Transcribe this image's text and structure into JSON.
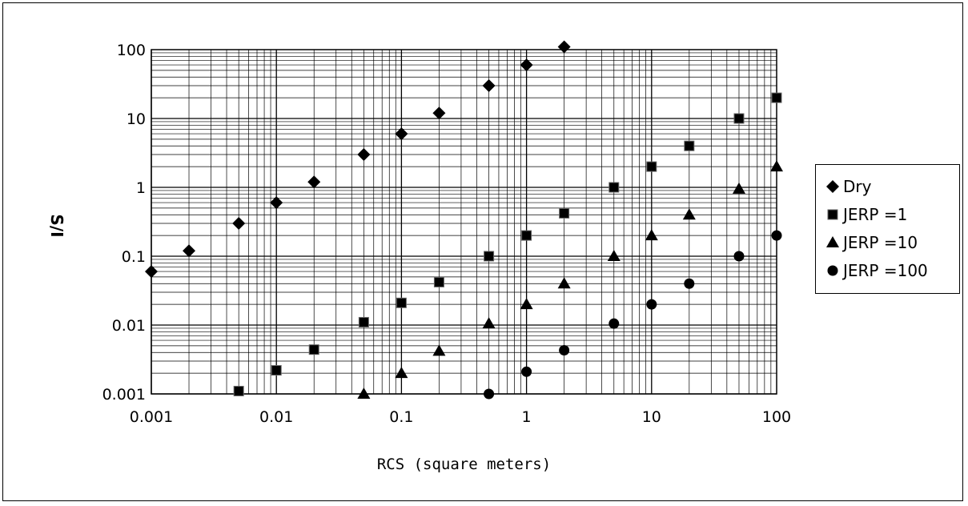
{
  "chart_data": {
    "type": "scatter",
    "title": "",
    "xlabel": "RCS (square meters)",
    "ylabel": "S/I",
    "xscale": "log",
    "yscale": "log",
    "xlim": [
      0.001,
      100
    ],
    "ylim": [
      0.001,
      100
    ],
    "x_ticks": [
      "0.001",
      "0.01",
      "0.1",
      "1",
      "10",
      "100"
    ],
    "y_ticks": [
      "0.001",
      "0.01",
      "0.1",
      "1",
      "10",
      "100"
    ],
    "grid": true,
    "legend_position": "right",
    "series": [
      {
        "name": "Dry",
        "marker": "diamond",
        "color": "#000000",
        "x": [
          0.001,
          0.002,
          0.005,
          0.01,
          0.02,
          0.05,
          0.1,
          0.2,
          0.5,
          1,
          2
        ],
        "y": [
          0.06,
          0.12,
          0.3,
          0.6,
          1.2,
          3,
          6,
          12,
          30,
          60,
          110
        ]
      },
      {
        "name": "JERP =1",
        "marker": "square",
        "color": "#000000",
        "x": [
          0.005,
          0.01,
          0.02,
          0.05,
          0.1,
          0.2,
          0.5,
          1,
          2,
          5,
          10,
          20,
          50,
          100
        ],
        "y": [
          0.0011,
          0.0022,
          0.0044,
          0.011,
          0.021,
          0.042,
          0.1,
          0.2,
          0.42,
          1,
          2,
          4,
          10,
          20
        ]
      },
      {
        "name": "JERP =10",
        "marker": "triangle",
        "color": "#000000",
        "x": [
          0.05,
          0.1,
          0.2,
          0.5,
          1,
          2,
          5,
          10,
          20,
          50,
          100
        ],
        "y": [
          0.001,
          0.002,
          0.0042,
          0.0105,
          0.02,
          0.04,
          0.1,
          0.2,
          0.4,
          0.95,
          2
        ]
      },
      {
        "name": "JERP =100",
        "marker": "circle",
        "color": "#000000",
        "x": [
          0.5,
          1,
          2,
          5,
          10,
          20,
          50,
          100
        ],
        "y": [
          0.001,
          0.0021,
          0.0043,
          0.0105,
          0.02,
          0.04,
          0.1,
          0.2
        ]
      }
    ]
  }
}
